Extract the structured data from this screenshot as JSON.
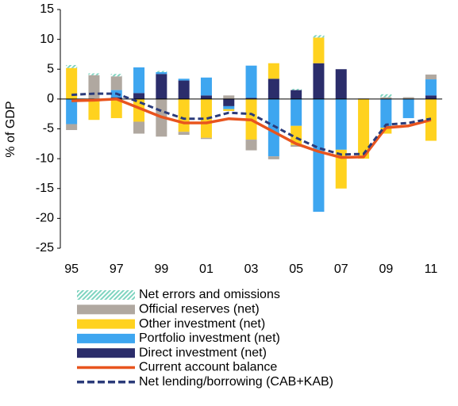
{
  "chart_data": {
    "type": "bar",
    "ylabel": "% of GDP",
    "categories": [
      "95",
      null,
      "97",
      null,
      "99",
      null,
      "01",
      null,
      "03",
      null,
      "05",
      null,
      "07",
      null,
      "09",
      null,
      "11"
    ],
    "ylim": [
      -25,
      15
    ],
    "yticks": [
      -25,
      -20,
      -15,
      -10,
      -5,
      0,
      5,
      10,
      15
    ],
    "series": [
      {
        "name": "Direct investment (net)",
        "color": "#2b2d6b",
        "values": [
          0,
          0,
          0.3,
          1,
          4.2,
          3.1,
          0.6,
          -1.2,
          0.2,
          3.4,
          1.5,
          6,
          5,
          0,
          0,
          0,
          0.6
        ]
      },
      {
        "name": "Portfolio investment (net)",
        "color": "#3ea6f0",
        "values": [
          -4.2,
          0,
          1.2,
          4.3,
          0.3,
          0.3,
          3,
          -0.5,
          5.4,
          -9.6,
          -4.5,
          -18.9,
          -8.5,
          0,
          -4.8,
          -3.2,
          2.7
        ]
      },
      {
        "name": "Other investment (net)",
        "color": "#ffd21f",
        "values": [
          5.2,
          -3.5,
          -3.2,
          -3.8,
          0,
          -5.5,
          -6.5,
          -0.3,
          -6.8,
          2.6,
          -3.2,
          4.3,
          -6.5,
          -10,
          -1,
          0,
          -7
        ]
      },
      {
        "name": "Official reserves (net)",
        "color": "#b0a8a0",
        "values": [
          -1,
          4,
          2.3,
          -2,
          -6.3,
          -0.5,
          -0.2,
          0.6,
          -1.8,
          -0.5,
          -0.3,
          0,
          0,
          0.1,
          0.3,
          0.3,
          0.8
        ]
      },
      {
        "name": "Net errors and omissions",
        "color": "#7fd4c0",
        "pattern": "hatch",
        "values": [
          0.5,
          0.3,
          0.4,
          0,
          0.2,
          0,
          0,
          0,
          0,
          0,
          0.2,
          0.4,
          0,
          0,
          0.5,
          0,
          0
        ]
      },
      {
        "name": "Current account balance",
        "type": "line",
        "color": "#e8541e",
        "values": [
          -0.3,
          -0.2,
          0,
          -1.5,
          -3,
          -4,
          -4,
          -3.3,
          -3.5,
          -5.5,
          -7.5,
          -8.8,
          -9.8,
          -9.7,
          -4.8,
          -4.5,
          -3.5
        ]
      },
      {
        "name": "Net lending/borrowing (CAB+KAB)",
        "type": "line",
        "dashed": true,
        "color": "#2b3b7a",
        "values": [
          0.7,
          0.9,
          0.9,
          -0.5,
          -2,
          -3.3,
          -3.3,
          -2.3,
          -2.5,
          -4.5,
          -6.5,
          -8.2,
          -9.3,
          -9.2,
          -4.3,
          -4,
          -3.3
        ]
      }
    ]
  }
}
